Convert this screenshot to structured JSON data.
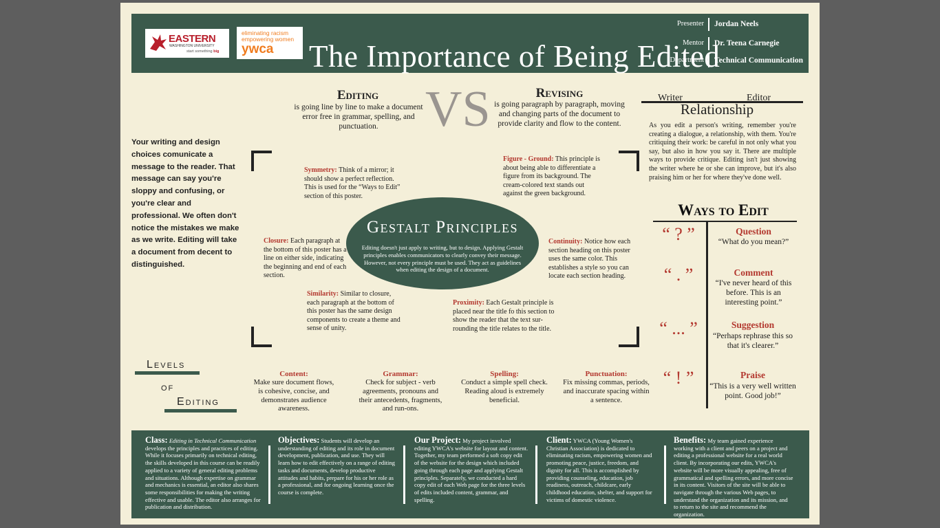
{
  "header": {
    "ewu_logo_name": "EASTERN",
    "ewu_logo_sub": "WASHINGTON UNIVERSITY",
    "ewu_tagline_a": "start something ",
    "ewu_tagline_b": "big",
    "ywca_line1": "eliminating racism",
    "ywca_line2": "empowering women",
    "ywca_name": "ywca",
    "title": "The Importance of Being Edited",
    "presenter_label": "Presenter",
    "presenter_value": "Jordan Neels",
    "mentor_label": "Mentor",
    "mentor_value": "Dr. Teena Carnegie",
    "department_label": "Department",
    "department_value": "Technical Communication"
  },
  "editing": {
    "heading": "Editing",
    "text": "is going line by line to make a document error free in grammar, spelling, and punctuation."
  },
  "vs": "VS",
  "revising": {
    "heading": "Revising",
    "text": "is going paragraph by paragraph, moving and changing parts of the document to provide clarity and flow to the content."
  },
  "relationship": {
    "writer": "Writer",
    "editor": "Editor",
    "heading": "Relationship",
    "text": "As you edit a person's writing, remember you're creating a dialogue, a relationship, with them. You're critiquing their work: be careful in not only what you say, but also in how you say it. There are multiple ways to provide critique. Editing isn't just showing the writer where he or she can improve, but it's also praising him or her for where they've done well."
  },
  "intro": "Your writing and design choices comunicate a message to the reader. That message can say you're sloppy and confusing, or you're clear and professional. We often don't notice the mistakes we make as we write. Editing will take a document from decent to distinguished.",
  "gestalt": {
    "title": "Gestalt Principles",
    "text": "Editing doesn't just apply to writing, but to design. Applying Gestalt principles enables communicators to clearly convey their message. However, not every principle must be used. They act as guidelines when editing the design of a document.",
    "symmetry_label": "Symmetry:",
    "symmetry_text": " Think of a mirror; it should show a perfect reflection. This is used for the “Ways to Edit” section of this poster.",
    "figure_label": "Figure - Ground:",
    "figure_text": " This principle is about being able to differentiate a figure from its background. The cream-colored text stands out against the green background.",
    "closure_label": "Closure:",
    "closure_text": " Each paragraph at the bottom of this poster has a line on either side, indicating the beginning and end of each section.",
    "continuity_label": "Continuity:",
    "continuity_text": " Notice how each section heading on this poster uses the same color. This establishes a style so you can locate each section heading.",
    "similarity_label": "Similarity:",
    "similarity_text": " Similar to closure, each paragraph at the bottom of this poster has the same design components to create a theme and sense of unity.",
    "proximity_label": "Proximity:",
    "proximity_text": " Each Gestalt principle is placed near the title fo this section to show the reader that the text sur-rounding the title relates to the title."
  },
  "ways": {
    "heading": "Ways to Edit",
    "items": [
      {
        "quote": "“ ? ”",
        "title": "Question",
        "desc": "“What do you mean?”"
      },
      {
        "quote": "“ . ”",
        "title": "Comment",
        "desc": "“I've never heard of this before. This is an interesting point.”"
      },
      {
        "quote": "“ ... ”",
        "title": "Suggestion",
        "desc": "“Perhaps rephrase this so that it's clearer.”"
      },
      {
        "quote": "“ ! ”",
        "title": "Praise",
        "desc": "“This is a very well written point. Good job!”"
      }
    ]
  },
  "levels": {
    "word1": "Levels",
    "word2": "of",
    "word3": "Editing",
    "items": [
      {
        "title": "Content:",
        "desc": "Make sure document flows, is cohesive, concise, and demonstrates audience awareness."
      },
      {
        "title": "Grammar:",
        "desc": "Check for subject - verb agreements, pronouns and their antecedents, fragments, and run-ons."
      },
      {
        "title": "Spelling:",
        "desc": "Conduct a simple spell check. Reading aloud is extremely beneficial."
      },
      {
        "title": "Punctuation:",
        "desc": "Fix missing commas, periods, and inaccurate spacing within a sentence."
      }
    ]
  },
  "footer": {
    "class_h": "Class:",
    "class_course": "Editing in Technical Communication",
    "class_text": " develops the principles and practices of editing. While it focuses primarily on technical editing, the skills developed in this course can be readily applied to a variety of general editing problems and situations. Although expertise on grammar and mechanics is essential, an editor also shares some responsibilities for making the writing effective and usable. The editor also arranges for publication and distribution.",
    "objectives_h": "Objectives:",
    "objectives_text": " Students will develop an understanding of editing and its role in document development, publication, and use. They will learn how to edit effectively on a range of editing tasks and documents, develop productive attitudes and habits, prepare for his or her role as a professional, and for ongoing learning once the course is complete.",
    "project_h": "Our Project:",
    "project_text": " My project involved editing YWCA's website for layout and content. Together, my team performed a soft copy edit of the website for the design which included going through each page and applying Gestalt principles. Separately, we conducted a hard copy edit of each Web page for the three levels of edits included content, grammar, and spelling.",
    "client_h": "Client:",
    "client_text": " YWCA (Young Women's Christian Association) is dedicated to eliminating racism, empowering women and promoting peace, justice, freedom, and dignity for all. This is accomplished by providing counseling, education, job readiness, outreach, childcare, early childhood education, shelter, and support for victims of domestic violence.",
    "benefits_h": "Benefits:",
    "benefits_text": " My team gained experience working with a client and peers on a project and editing a professional website for a real world client. By incorporating our edits, YWCA's website will be more visually appealing, free of grammatical and spelling errors, and more concise in its content. Visitors of the site will be able to navigate through the various Web pages, to understand the organization and its mission, and to return to the site and recommend the organization."
  },
  "colors": {
    "green": "#3b5a4c",
    "cream": "#f4efd9",
    "red": "#b3382f",
    "background": "#5e5e5e"
  }
}
